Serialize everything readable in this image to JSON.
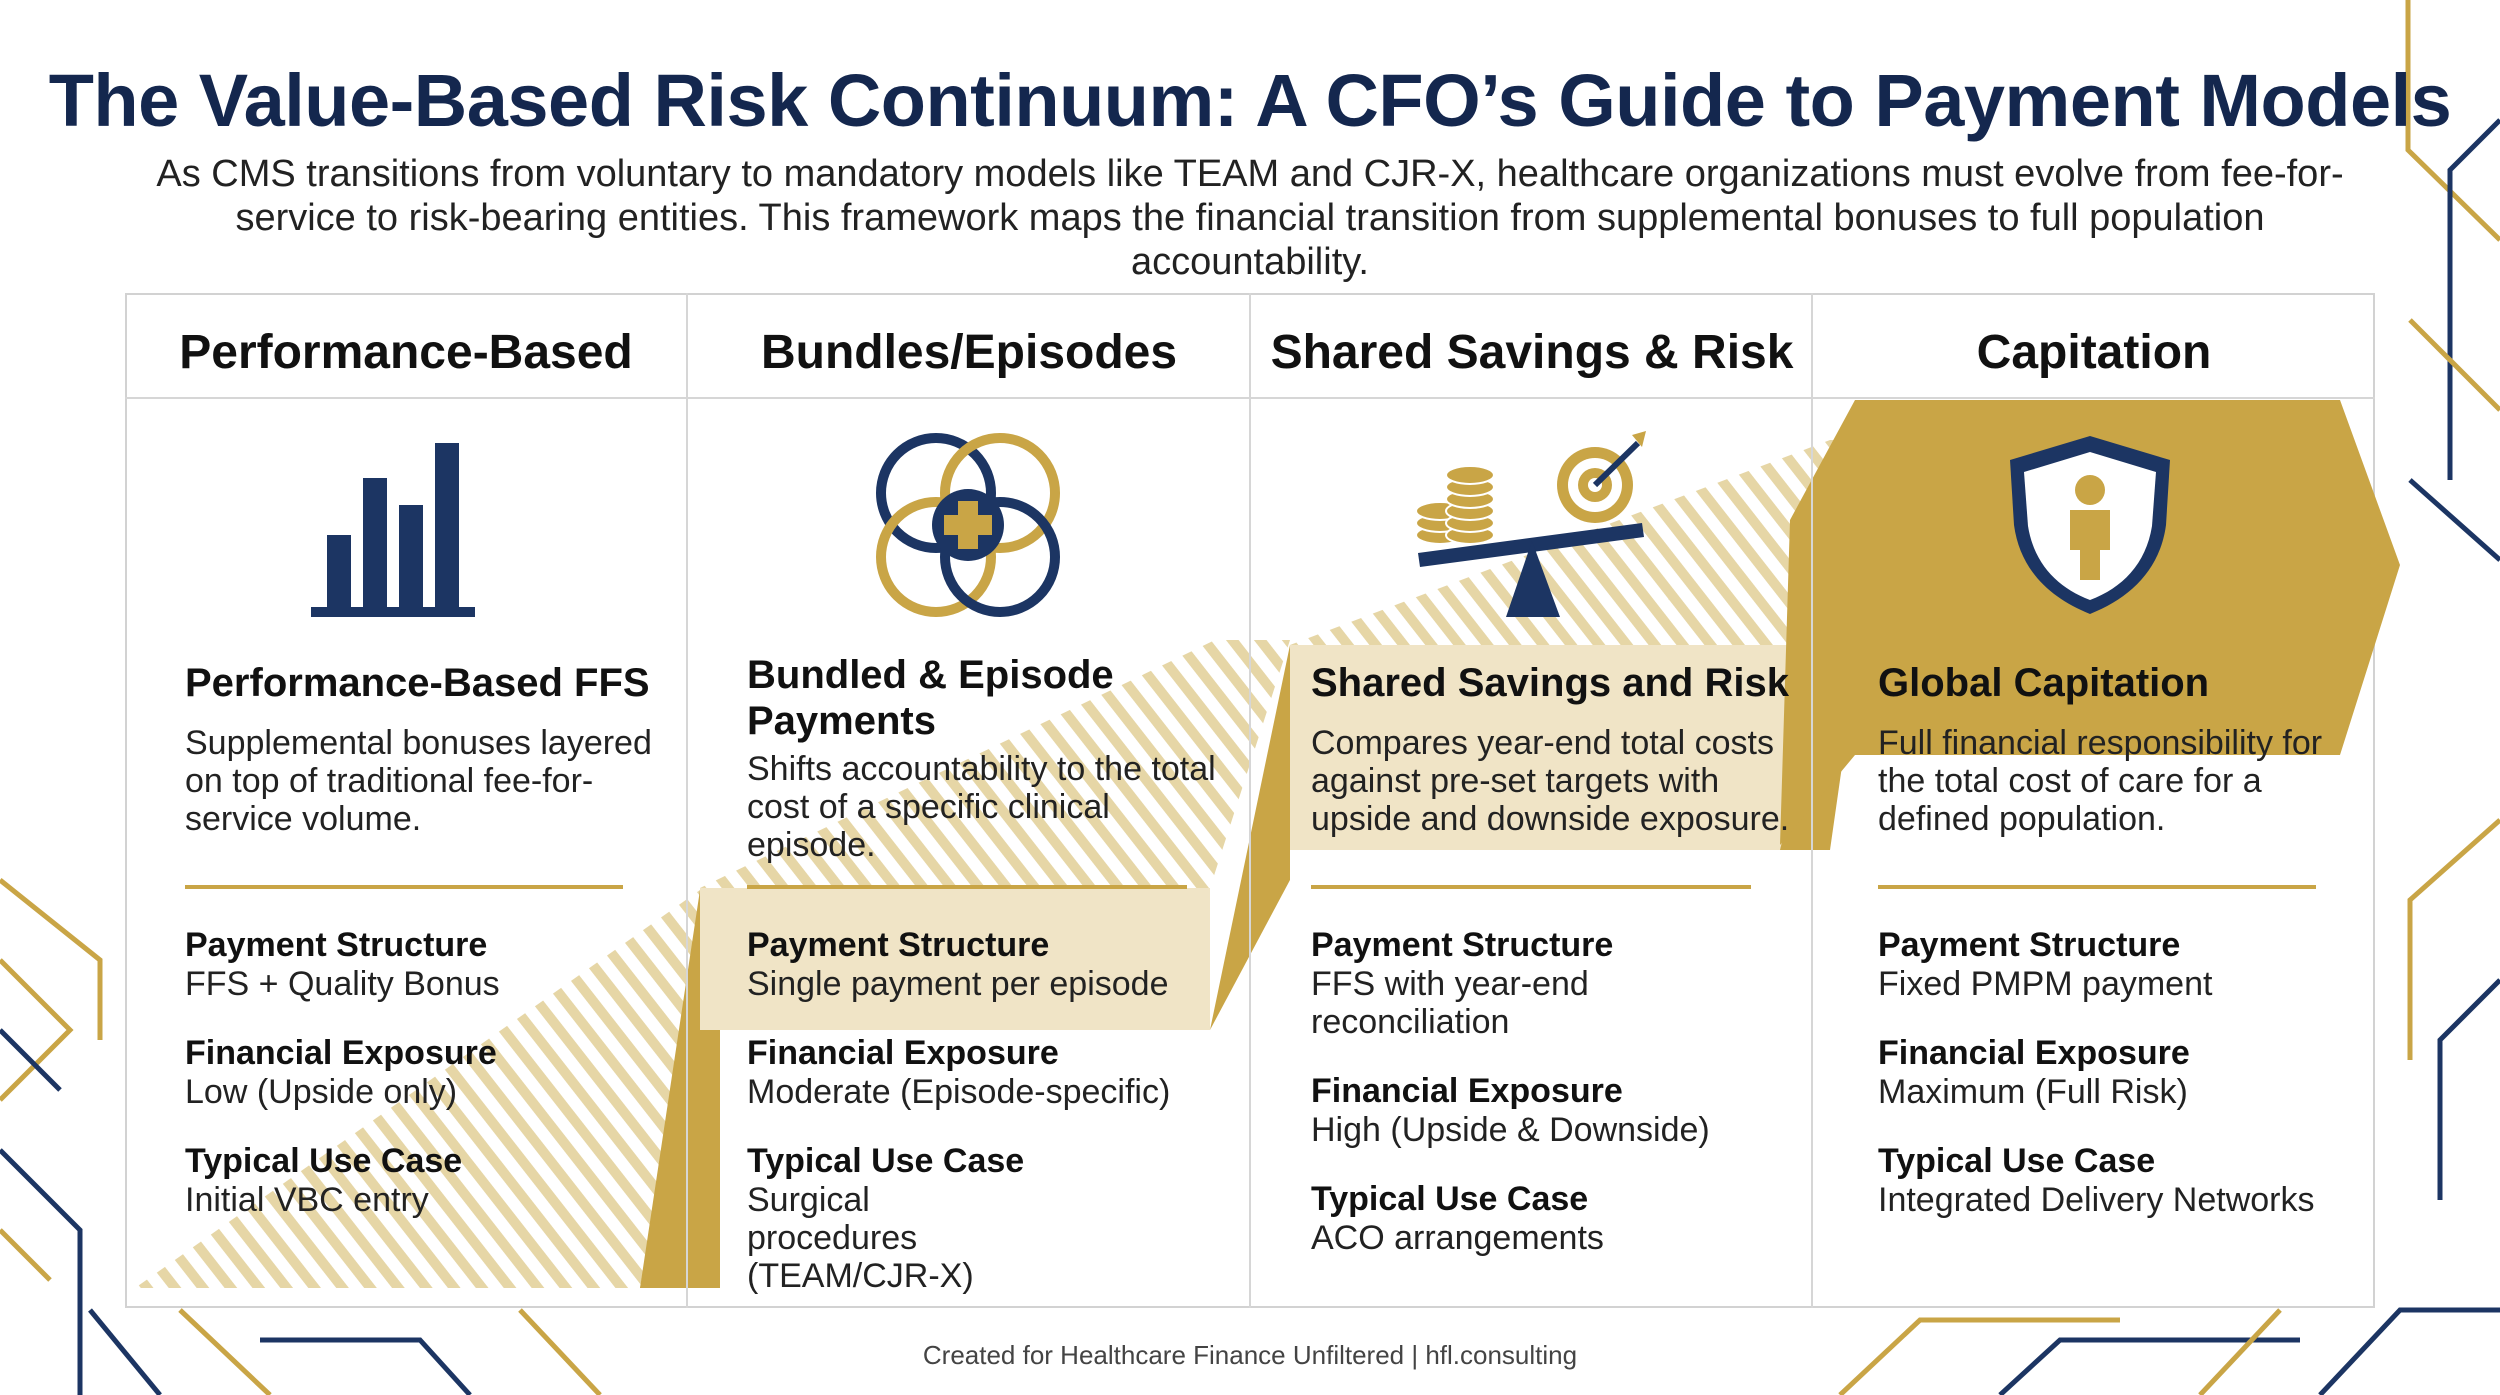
{
  "title": "The Value-Based Risk Continuum: A CFO’s Guide to Payment Models",
  "subtitle": "As CMS transitions from voluntary to mandatory models like TEAM and CJR-X, healthcare organizations must evolve from fee-for-service to risk-bearing entities. This framework maps the financial transition from supplemental bonuses to full population accountability.",
  "colors": {
    "navy": "#1c3563",
    "gold": "#c9a546",
    "light_gold": "#f0e4c6"
  },
  "columns": [
    {
      "header": "Performance-Based",
      "icon": "bar-chart-icon",
      "model_title": "Performance-Based FFS",
      "description": "Supplemental bonuses layered on top of traditional fee-for-service volume.",
      "payment_structure_label": "Payment Structure",
      "payment_structure": "FFS + Quality Bonus",
      "financial_exposure_label": "Financial Exposure",
      "financial_exposure": "Low (Upside only)",
      "use_case_label": "Typical Use Case",
      "use_case": "Initial VBC entry"
    },
    {
      "header": "Bundles/Episodes",
      "icon": "interlocking-circles-medical-cross-icon",
      "model_title": "Bundled & Episode Payments",
      "description": "Shifts accountability to the total cost of a specific clinical episode.",
      "payment_structure_label": "Payment Structure",
      "payment_structure": "Single payment per episode",
      "financial_exposure_label": "Financial Exposure",
      "financial_exposure": "Moderate (Episode-specific)",
      "use_case_label": "Typical Use Case",
      "use_case": "Surgical procedures (TEAM/CJR-X)"
    },
    {
      "header": "Shared Savings & Risk",
      "icon": "coins-balance-target-icon",
      "model_title": "Shared Savings and Risk",
      "description": "Compares year-end total costs against pre-set targets with upside and downside exposure.",
      "payment_structure_label": "Payment Structure",
      "payment_structure": "FFS with year-end reconciliation",
      "financial_exposure_label": "Financial Exposure",
      "financial_exposure": "High (Upside & Downside)",
      "use_case_label": "Typical Use Case",
      "use_case": "ACO arrangements"
    },
    {
      "header": "Capitation",
      "icon": "shield-person-icon",
      "model_title": "Global Capitation",
      "description": "Full financial responsibility for the total cost of care for a defined population.",
      "payment_structure_label": "Payment Structure",
      "payment_structure": "Fixed PMPM payment",
      "financial_exposure_label": "Financial Exposure",
      "financial_exposure": "Maximum (Full Risk)",
      "use_case_label": "Typical Use Case",
      "use_case": "Integrated Delivery Networks"
    }
  ],
  "footer": "Created for Healthcare Finance Unfiltered | hfl.consulting"
}
